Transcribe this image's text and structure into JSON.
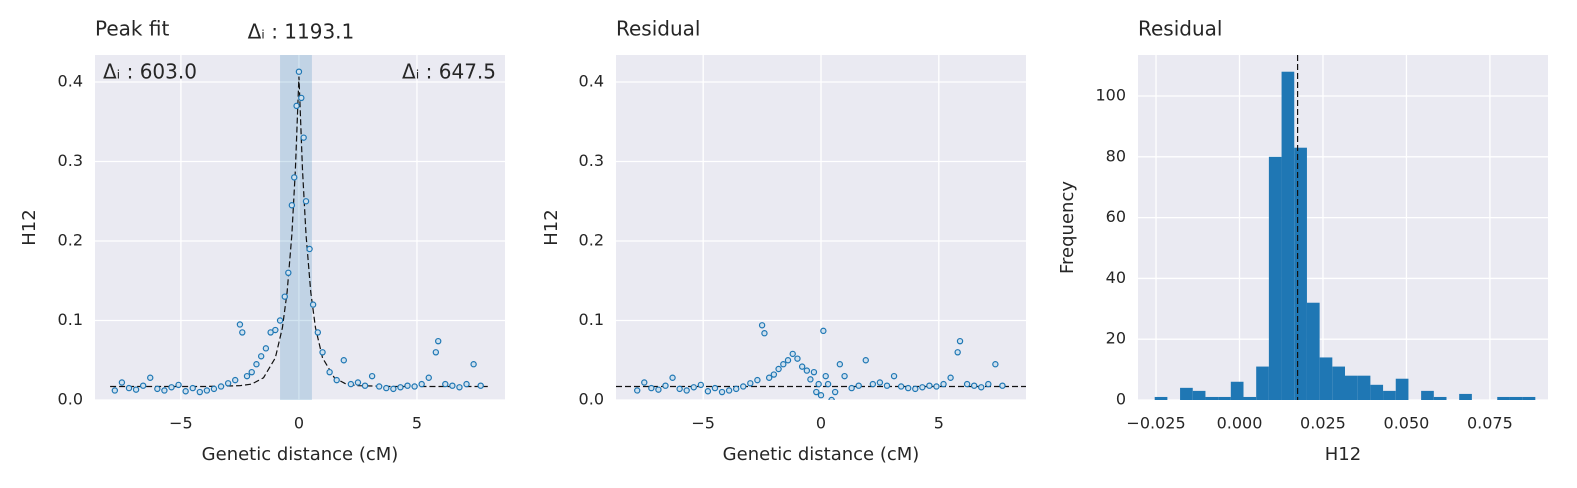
{
  "chart_data": [
    {
      "type": "scatter",
      "title": "Peak fit",
      "x_label": "Genetic distance (cM)",
      "y_label": "H12",
      "color": "#1f77b4",
      "annotations": [
        "Δᵢ : 603.0",
        "Δᵢ : 1193.1",
        "Δᵢ : 647.5"
      ],
      "x": [
        -7.8,
        -7.5,
        -7.2,
        -6.9,
        -6.6,
        -6.3,
        -6.0,
        -5.7,
        -5.4,
        -5.1,
        -4.8,
        -4.5,
        -4.2,
        -3.9,
        -3.6,
        -3.3,
        -3.0,
        -2.7,
        -2.5,
        -2.4,
        -2.2,
        -2.0,
        -1.8,
        -1.6,
        -1.4,
        -1.2,
        -1.0,
        -0.8,
        -0.6,
        -0.45,
        -0.3,
        -0.2,
        -0.1,
        0.0,
        0.1,
        0.2,
        0.3,
        0.45,
        0.6,
        0.8,
        1.0,
        1.3,
        1.6,
        1.9,
        2.2,
        2.5,
        2.8,
        3.1,
        3.4,
        3.7,
        4.0,
        4.3,
        4.6,
        4.9,
        5.2,
        5.5,
        5.8,
        5.9,
        6.2,
        6.5,
        6.8,
        7.1,
        7.4,
        7.7
      ],
      "values": [
        0.012,
        0.022,
        0.015,
        0.013,
        0.018,
        0.028,
        0.014,
        0.012,
        0.016,
        0.019,
        0.011,
        0.015,
        0.01,
        0.012,
        0.014,
        0.017,
        0.021,
        0.025,
        0.095,
        0.085,
        0.03,
        0.035,
        0.045,
        0.055,
        0.065,
        0.085,
        0.088,
        0.1,
        0.13,
        0.16,
        0.245,
        0.28,
        0.37,
        0.413,
        0.38,
        0.33,
        0.25,
        0.19,
        0.12,
        0.085,
        0.06,
        0.035,
        0.025,
        0.05,
        0.02,
        0.022,
        0.018,
        0.03,
        0.017,
        0.015,
        0.014,
        0.016,
        0.018,
        0.017,
        0.02,
        0.028,
        0.06,
        0.074,
        0.02,
        0.018,
        0.016,
        0.02,
        0.045,
        0.018
      ],
      "fit": {
        "x": [
          -8,
          -4,
          -2.5,
          -2,
          -1.5,
          -1,
          -0.7,
          -0.5,
          -0.3,
          -0.15,
          0,
          0.15,
          0.3,
          0.5,
          0.7,
          1,
          1.5,
          2,
          2.5,
          4,
          8
        ],
        "values": [
          0.017,
          0.017,
          0.018,
          0.02,
          0.028,
          0.053,
          0.091,
          0.136,
          0.208,
          0.29,
          0.407,
          0.29,
          0.208,
          0.136,
          0.091,
          0.053,
          0.028,
          0.02,
          0.018,
          0.017,
          0.017
        ]
      },
      "span": [
        -0.8,
        0.55
      ],
      "xlim": [
        -8.64,
        8.73
      ],
      "xticks": [
        {
          "value": -5,
          "label": "−5"
        },
        0,
        5
      ],
      "ylim": [
        0,
        0.434
      ],
      "yticks": [
        {
          "value": 0,
          "label": "0.0"
        },
        0.1,
        0.2,
        0.3,
        0.4
      ],
      "grid": true
    },
    {
      "type": "scatter",
      "title": "Residual",
      "x_label": "Genetic distance (cM)",
      "y_label": "H12",
      "color": "#1f77b4",
      "x": [
        -7.8,
        -7.5,
        -7.2,
        -6.9,
        -6.6,
        -6.3,
        -6.0,
        -5.7,
        -5.4,
        -5.1,
        -4.8,
        -4.5,
        -4.2,
        -3.9,
        -3.6,
        -3.3,
        -3.0,
        -2.7,
        -2.5,
        -2.4,
        -2.2,
        -2.0,
        -1.8,
        -1.6,
        -1.4,
        -1.2,
        -1.0,
        -0.8,
        -0.6,
        -0.45,
        -0.3,
        -0.2,
        -0.1,
        0.0,
        0.1,
        0.2,
        0.3,
        0.45,
        0.6,
        0.8,
        1.0,
        1.3,
        1.6,
        1.9,
        2.2,
        2.5,
        2.8,
        3.1,
        3.4,
        3.7,
        4.0,
        4.3,
        4.6,
        4.9,
        5.2,
        5.5,
        5.8,
        5.9,
        6.2,
        6.5,
        6.8,
        7.1,
        7.4,
        7.7
      ],
      "values": [
        0.012,
        0.022,
        0.015,
        0.013,
        0.018,
        0.028,
        0.014,
        0.012,
        0.016,
        0.019,
        0.011,
        0.015,
        0.01,
        0.012,
        0.014,
        0.017,
        0.021,
        0.025,
        0.094,
        0.084,
        0.028,
        0.032,
        0.039,
        0.045,
        0.05,
        0.058,
        0.052,
        0.042,
        0.037,
        0.026,
        0.035,
        0.01,
        0.02,
        0.006,
        0.087,
        0.03,
        0.02,
        0.0,
        0.01,
        0.045,
        0.03,
        0.015,
        0.018,
        0.05,
        0.02,
        0.022,
        0.018,
        0.03,
        0.017,
        0.015,
        0.014,
        0.016,
        0.018,
        0.017,
        0.02,
        0.028,
        0.06,
        0.074,
        0.02,
        0.018,
        0.016,
        0.02,
        0.045,
        0.018
      ],
      "hline": 0.017,
      "xlim": [
        -8.7,
        8.7
      ],
      "xticks": [
        {
          "value": -5,
          "label": "−5"
        },
        0,
        5
      ],
      "ylim": [
        0,
        0.434
      ],
      "yticks": [
        {
          "value": 0,
          "label": "0.0"
        },
        0.1,
        0.2,
        0.3,
        0.4
      ],
      "grid": true
    },
    {
      "type": "histogram",
      "title": "Residual",
      "x_label": "H12",
      "y_label": "Frequency",
      "color": "#1f77b4",
      "bins": [
        -0.0254,
        -0.0216,
        -0.0178,
        -0.014,
        -0.0102,
        -0.0064,
        -0.0026,
        0.0012,
        0.005,
        0.0088,
        0.0126,
        0.0164,
        0.0202,
        0.024,
        0.0278,
        0.0316,
        0.0354,
        0.0392,
        0.043,
        0.0468,
        0.0506,
        0.0544,
        0.0582,
        0.062,
        0.0658,
        0.0696,
        0.0734,
        0.0772,
        0.081,
        0.0848,
        0.0886,
        0.0924
      ],
      "values": [
        1,
        0,
        4,
        3,
        1,
        1,
        6,
        1,
        11,
        80,
        108,
        83,
        32,
        14,
        11,
        8,
        8,
        5,
        3,
        7,
        0,
        3,
        1,
        0,
        2,
        0,
        0,
        1,
        1,
        1,
        0
      ],
      "vline": 0.0174,
      "xlim": [
        -0.0304,
        0.0924
      ],
      "xticks": [
        {
          "value": -0.025,
          "label": "−0.025"
        },
        {
          "value": 0,
          "label": "0.000"
        },
        0.025,
        {
          "value": 0.05,
          "label": "0.050"
        },
        0.075
      ],
      "ylim": [
        0,
        113.5
      ],
      "yticks": [
        0,
        20,
        40,
        60,
        80,
        100
      ],
      "grid": true
    }
  ]
}
